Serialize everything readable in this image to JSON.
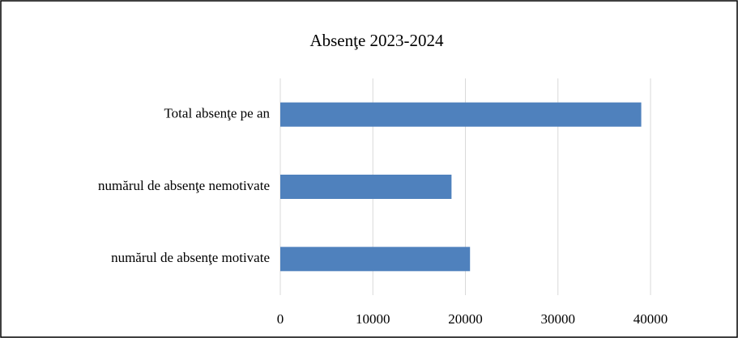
{
  "chart_data": {
    "type": "bar",
    "orientation": "horizontal",
    "title": "Absenţe 2023-2024",
    "categories": [
      "Total absenţe pe an",
      "numărul de absenţe nemotivate",
      "numărul de absenţe motivate"
    ],
    "values": [
      39000,
      18500,
      20500
    ],
    "color": "#4f81bd",
    "xlim": [
      0,
      40000
    ],
    "xticks": [
      0,
      10000,
      20000,
      30000,
      40000
    ],
    "grid": true
  }
}
